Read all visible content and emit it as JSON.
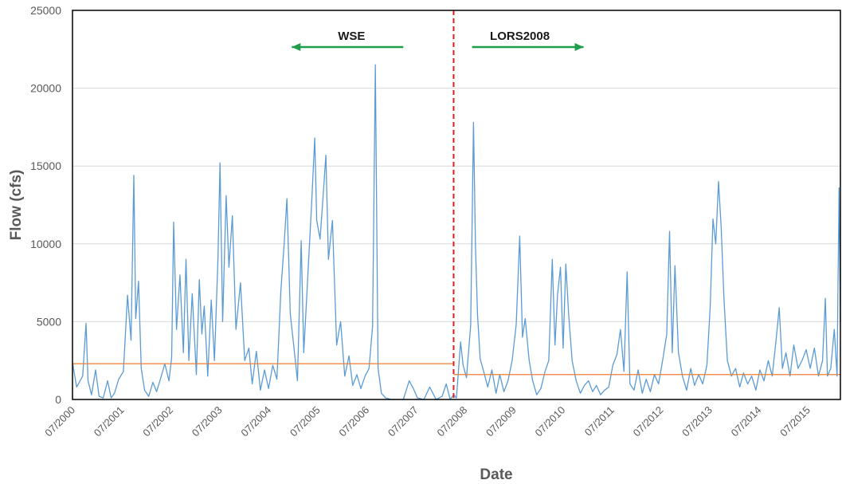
{
  "chart_data": {
    "type": "line",
    "xlabel": "Date",
    "ylabel": "Flow (cfs)",
    "ylim": [
      0,
      25000
    ],
    "xlim": [
      "2000-07",
      "2016-03"
    ],
    "yticks": [
      0,
      5000,
      10000,
      15000,
      20000,
      25000
    ],
    "xtick_labels": [
      "07/2000",
      "07/2001",
      "07/2002",
      "07/2003",
      "07/2004",
      "07/2005",
      "07/2006",
      "07/2007",
      "07/2008",
      "07/2009",
      "07/2010",
      "07/2011",
      "07/2012",
      "07/2013",
      "07/2014",
      "07/2015"
    ],
    "grid": "horizontal",
    "legend": "none",
    "colors": {
      "flow": "#5b9bd5",
      "reference": "#ed7d31",
      "divider": "#e02020",
      "arrow": "#1e9e4a",
      "gridline": "#d9d9d9"
    },
    "series": [
      {
        "values_description_excluded": true,
        "points": [
          [
            "2000-07-01",
            2400
          ],
          [
            "2000-08-01",
            800
          ],
          [
            "2000-09-15",
            1500
          ],
          [
            "2000-10-10",
            4900
          ],
          [
            "2000-10-25",
            1200
          ],
          [
            "2000-11-20",
            300
          ],
          [
            "2000-12-20",
            1900
          ],
          [
            "2001-01-15",
            200
          ],
          [
            "2001-02-15",
            100
          ],
          [
            "2001-03-20",
            1200
          ],
          [
            "2001-04-15",
            100
          ],
          [
            "2001-05-10",
            400
          ],
          [
            "2001-06-10",
            1300
          ],
          [
            "2001-07-15",
            1800
          ],
          [
            "2001-08-15",
            6700
          ],
          [
            "2001-09-10",
            3800
          ],
          [
            "2001-10-01",
            14400
          ],
          [
            "2001-10-15",
            5200
          ],
          [
            "2001-11-05",
            7600
          ],
          [
            "2001-11-25",
            2000
          ],
          [
            "2001-12-20",
            600
          ],
          [
            "2002-01-20",
            200
          ],
          [
            "2002-02-20",
            1100
          ],
          [
            "2002-03-20",
            500
          ],
          [
            "2002-04-20",
            1400
          ],
          [
            "2002-05-20",
            2300
          ],
          [
            "2002-06-20",
            1200
          ],
          [
            "2002-07-10",
            2700
          ],
          [
            "2002-07-25",
            11400
          ],
          [
            "2002-08-15",
            4500
          ],
          [
            "2002-09-10",
            8000
          ],
          [
            "2002-10-05",
            3000
          ],
          [
            "2002-10-25",
            9000
          ],
          [
            "2002-11-15",
            2500
          ],
          [
            "2002-12-10",
            6800
          ],
          [
            "2003-01-10",
            1600
          ],
          [
            "2003-02-01",
            7700
          ],
          [
            "2003-02-20",
            4200
          ],
          [
            "2003-03-10",
            6000
          ],
          [
            "2003-04-05",
            1500
          ],
          [
            "2003-05-01",
            6400
          ],
          [
            "2003-05-25",
            2500
          ],
          [
            "2003-06-20",
            9000
          ],
          [
            "2003-07-05",
            15200
          ],
          [
            "2003-07-25",
            5000
          ],
          [
            "2003-08-20",
            13100
          ],
          [
            "2003-09-10",
            8500
          ],
          [
            "2003-10-05",
            11800
          ],
          [
            "2003-11-01",
            4500
          ],
          [
            "2003-12-05",
            7500
          ],
          [
            "2004-01-05",
            2500
          ],
          [
            "2004-02-05",
            3300
          ],
          [
            "2004-03-01",
            1000
          ],
          [
            "2004-04-01",
            3100
          ],
          [
            "2004-05-01",
            600
          ],
          [
            "2004-06-01",
            1900
          ],
          [
            "2004-07-01",
            700
          ],
          [
            "2004-08-01",
            2200
          ],
          [
            "2004-09-01",
            1300
          ],
          [
            "2004-10-01",
            7000
          ],
          [
            "2004-10-25",
            10000
          ],
          [
            "2004-11-15",
            12900
          ],
          [
            "2004-12-10",
            5500
          ],
          [
            "2005-01-10",
            3000
          ],
          [
            "2005-02-01",
            1200
          ],
          [
            "2005-03-01",
            10200
          ],
          [
            "2005-03-20",
            3000
          ],
          [
            "2005-04-20",
            8000
          ],
          [
            "2005-05-20",
            13000
          ],
          [
            "2005-06-10",
            16800
          ],
          [
            "2005-06-25",
            11500
          ],
          [
            "2005-07-20",
            10300
          ],
          [
            "2005-08-15",
            13500
          ],
          [
            "2005-09-01",
            15700
          ],
          [
            "2005-09-20",
            9000
          ],
          [
            "2005-10-20",
            11500
          ],
          [
            "2005-11-20",
            3500
          ],
          [
            "2005-12-20",
            5000
          ],
          [
            "2006-01-20",
            1500
          ],
          [
            "2006-02-20",
            2800
          ],
          [
            "2006-03-20",
            900
          ],
          [
            "2006-04-20",
            1600
          ],
          [
            "2006-05-20",
            700
          ],
          [
            "2006-06-20",
            1500
          ],
          [
            "2006-07-20",
            2000
          ],
          [
            "2006-08-15",
            4700
          ],
          [
            "2006-09-05",
            21500
          ],
          [
            "2006-09-25",
            2000
          ],
          [
            "2006-10-20",
            400
          ],
          [
            "2006-11-20",
            100
          ],
          [
            "2007-01-01",
            0
          ],
          [
            "2007-02-15",
            0
          ],
          [
            "2007-04-01",
            0
          ],
          [
            "2007-05-15",
            1200
          ],
          [
            "2007-06-15",
            700
          ],
          [
            "2007-07-15",
            100
          ],
          [
            "2007-09-01",
            0
          ],
          [
            "2007-10-15",
            800
          ],
          [
            "2007-12-01",
            0
          ],
          [
            "2008-01-15",
            200
          ],
          [
            "2008-02-15",
            1000
          ],
          [
            "2008-03-15",
            0
          ],
          [
            "2008-04-10",
            300
          ],
          [
            "2008-05-01",
            100
          ],
          [
            "2008-06-01",
            3700
          ],
          [
            "2008-06-20",
            2200
          ],
          [
            "2008-07-15",
            1400
          ],
          [
            "2008-08-15",
            4800
          ],
          [
            "2008-09-05",
            17800
          ],
          [
            "2008-09-20",
            9800
          ],
          [
            "2008-10-05",
            5400
          ],
          [
            "2008-10-25",
            2600
          ],
          [
            "2008-11-20",
            1800
          ],
          [
            "2008-12-20",
            800
          ],
          [
            "2009-01-20",
            1900
          ],
          [
            "2009-02-20",
            400
          ],
          [
            "2009-03-20",
            1600
          ],
          [
            "2009-04-20",
            500
          ],
          [
            "2009-05-20",
            1200
          ],
          [
            "2009-06-20",
            2500
          ],
          [
            "2009-07-20",
            4800
          ],
          [
            "2009-08-15",
            10500
          ],
          [
            "2009-09-05",
            4000
          ],
          [
            "2009-09-25",
            5200
          ],
          [
            "2009-10-25",
            2500
          ],
          [
            "2009-11-20",
            1200
          ],
          [
            "2009-12-20",
            300
          ],
          [
            "2010-01-20",
            700
          ],
          [
            "2010-02-20",
            1800
          ],
          [
            "2010-03-20",
            2500
          ],
          [
            "2010-04-15",
            9000
          ],
          [
            "2010-05-05",
            3500
          ],
          [
            "2010-05-25",
            6800
          ],
          [
            "2010-06-15",
            8500
          ],
          [
            "2010-07-05",
            3300
          ],
          [
            "2010-07-25",
            8700
          ],
          [
            "2010-08-15",
            5500
          ],
          [
            "2010-09-10",
            2500
          ],
          [
            "2010-10-10",
            1200
          ],
          [
            "2010-11-10",
            400
          ],
          [
            "2010-12-10",
            900
          ],
          [
            "2011-01-10",
            1200
          ],
          [
            "2011-02-10",
            500
          ],
          [
            "2011-03-10",
            900
          ],
          [
            "2011-04-10",
            300
          ],
          [
            "2011-05-10",
            600
          ],
          [
            "2011-06-10",
            800
          ],
          [
            "2011-07-10",
            2200
          ],
          [
            "2011-08-10",
            2900
          ],
          [
            "2011-09-05",
            4500
          ],
          [
            "2011-10-01",
            1800
          ],
          [
            "2011-10-25",
            8200
          ],
          [
            "2011-11-15",
            1000
          ],
          [
            "2011-12-15",
            600
          ],
          [
            "2012-01-15",
            1900
          ],
          [
            "2012-02-15",
            400
          ],
          [
            "2012-03-15",
            1300
          ],
          [
            "2012-04-15",
            500
          ],
          [
            "2012-05-15",
            1600
          ],
          [
            "2012-06-15",
            1000
          ],
          [
            "2012-07-15",
            2500
          ],
          [
            "2012-08-15",
            4200
          ],
          [
            "2012-09-05",
            10800
          ],
          [
            "2012-09-25",
            3000
          ],
          [
            "2012-10-15",
            8600
          ],
          [
            "2012-11-10",
            3000
          ],
          [
            "2012-12-10",
            1500
          ],
          [
            "2013-01-10",
            600
          ],
          [
            "2013-02-10",
            2000
          ],
          [
            "2013-03-10",
            900
          ],
          [
            "2013-04-10",
            1600
          ],
          [
            "2013-05-10",
            1000
          ],
          [
            "2013-06-10",
            2200
          ],
          [
            "2013-07-05",
            6000
          ],
          [
            "2013-07-25",
            11600
          ],
          [
            "2013-08-15",
            10000
          ],
          [
            "2013-09-05",
            14000
          ],
          [
            "2013-09-25",
            11000
          ],
          [
            "2013-10-15",
            6500
          ],
          [
            "2013-11-10",
            2500
          ],
          [
            "2013-12-10",
            1500
          ],
          [
            "2014-01-10",
            2000
          ],
          [
            "2014-02-10",
            800
          ],
          [
            "2014-03-10",
            1700
          ],
          [
            "2014-04-10",
            1000
          ],
          [
            "2014-05-10",
            1500
          ],
          [
            "2014-06-10",
            600
          ],
          [
            "2014-07-10",
            1900
          ],
          [
            "2014-08-10",
            1200
          ],
          [
            "2014-09-10",
            2500
          ],
          [
            "2014-10-10",
            1500
          ],
          [
            "2014-11-10",
            4000
          ],
          [
            "2014-12-01",
            5900
          ],
          [
            "2014-12-25",
            2000
          ],
          [
            "2015-01-20",
            3000
          ],
          [
            "2015-02-20",
            1500
          ],
          [
            "2015-03-20",
            3500
          ],
          [
            "2015-04-20",
            2000
          ],
          [
            "2015-05-20",
            2500
          ],
          [
            "2015-06-20",
            3200
          ],
          [
            "2015-07-20",
            2000
          ],
          [
            "2015-08-20",
            3300
          ],
          [
            "2015-09-20",
            1500
          ],
          [
            "2015-10-20",
            2500
          ],
          [
            "2015-11-10",
            6500
          ],
          [
            "2015-11-25",
            1500
          ],
          [
            "2015-12-20",
            2000
          ],
          [
            "2016-01-15",
            4500
          ],
          [
            "2016-02-05",
            1500
          ],
          [
            "2016-02-20",
            13600
          ],
          [
            "2016-03-01",
            5000
          ]
        ]
      },
      {
        "segments": [
          [
            "2000-07-01",
            2300
          ],
          [
            "2008-04-10",
            2300
          ]
        ]
      },
      {
        "segments": [
          [
            "2008-04-10",
            1600
          ],
          [
            "2016-03-01",
            1600
          ]
        ]
      }
    ],
    "annotations": [
      {
        "text": "WSE",
        "direction": "left",
        "x": "2007-04-01"
      },
      {
        "text": "LORS2008",
        "direction": "right",
        "x": "2009-09-15"
      }
    ],
    "divider_date": "2008-04-10"
  }
}
